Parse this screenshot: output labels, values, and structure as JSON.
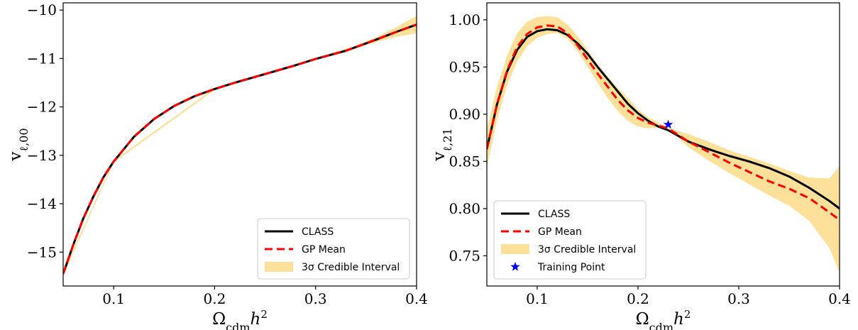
{
  "colors": {
    "class_line": "#000000",
    "gp_mean": "#ff0000",
    "band": "#fde19a",
    "training_point": "#0000ff"
  },
  "legend_labels": {
    "class": "CLASS",
    "gp_mean": "GP Mean",
    "band": "3σ Credible Interval",
    "training": "Training Point"
  },
  "chart_data": [
    {
      "type": "line",
      "xlabel": "Ω_cdm h²",
      "ylabel": "v_ℓ,00",
      "xlim": [
        0.05,
        0.4
      ],
      "ylim": [
        -15.7,
        -9.85
      ],
      "xticks": [
        0.1,
        0.2,
        0.3,
        0.4
      ],
      "xtick_labels": [
        "0.1",
        "0.2",
        "0.3",
        "0.4"
      ],
      "yticks": [
        -15,
        -14,
        -13,
        -12,
        -11,
        -10
      ],
      "ytick_labels": [
        "−15",
        "−14",
        "−13",
        "−12",
        "−11",
        "−10"
      ],
      "legend_position": "lower-right",
      "grid": false,
      "series": [
        {
          "name": "CLASS",
          "x": [
            0.05,
            0.06,
            0.07,
            0.08,
            0.09,
            0.1,
            0.12,
            0.14,
            0.16,
            0.18,
            0.2,
            0.22,
            0.25,
            0.28,
            0.3,
            0.33,
            0.36,
            0.38,
            0.4
          ],
          "values": [
            -15.45,
            -14.85,
            -14.3,
            -13.85,
            -13.45,
            -13.13,
            -12.62,
            -12.25,
            -11.98,
            -11.78,
            -11.63,
            -11.5,
            -11.32,
            -11.14,
            -11.01,
            -10.84,
            -10.61,
            -10.45,
            -10.3
          ]
        },
        {
          "name": "GP Mean",
          "x": [
            0.05,
            0.06,
            0.07,
            0.08,
            0.09,
            0.1,
            0.12,
            0.14,
            0.16,
            0.18,
            0.2,
            0.22,
            0.25,
            0.28,
            0.3,
            0.33,
            0.36,
            0.38,
            0.4
          ],
          "values": [
            -15.45,
            -14.85,
            -14.3,
            -13.85,
            -13.45,
            -13.13,
            -12.62,
            -12.25,
            -11.98,
            -11.78,
            -11.63,
            -11.5,
            -11.32,
            -11.14,
            -11.01,
            -10.84,
            -10.61,
            -10.45,
            -10.3
          ]
        }
      ],
      "band": {
        "name": "3σ Credible Interval",
        "x": [
          0.05,
          0.1,
          0.2,
          0.3,
          0.34,
          0.36,
          0.38,
          0.4
        ],
        "halfwidth": [
          0.04,
          0.02,
          0.02,
          0.02,
          0.03,
          0.05,
          0.1,
          0.18
        ]
      }
    },
    {
      "type": "line",
      "xlabel": "Ω_cdm h²",
      "ylabel": "v_ℓ,21",
      "xlim": [
        0.05,
        0.4
      ],
      "ylim": [
        0.718,
        1.018
      ],
      "xticks": [
        0.1,
        0.2,
        0.3,
        0.4
      ],
      "xtick_labels": [
        "0.1",
        "0.2",
        "0.3",
        "0.4"
      ],
      "yticks": [
        0.75,
        0.8,
        0.85,
        0.9,
        0.95,
        1.0
      ],
      "ytick_labels": [
        "0.75",
        "0.80",
        "0.85",
        "0.90",
        "0.95",
        "1.00"
      ],
      "legend_position": "lower-left",
      "grid": false,
      "series": [
        {
          "name": "CLASS",
          "x": [
            0.05,
            0.06,
            0.07,
            0.08,
            0.09,
            0.1,
            0.11,
            0.12,
            0.13,
            0.14,
            0.15,
            0.16,
            0.17,
            0.18,
            0.19,
            0.2,
            0.21,
            0.22,
            0.23,
            0.24,
            0.25,
            0.27,
            0.29,
            0.31,
            0.33,
            0.35,
            0.37,
            0.39,
            0.4
          ],
          "values": [
            0.863,
            0.91,
            0.945,
            0.968,
            0.982,
            0.988,
            0.99,
            0.989,
            0.984,
            0.975,
            0.964,
            0.95,
            0.937,
            0.924,
            0.911,
            0.901,
            0.893,
            0.887,
            0.883,
            0.877,
            0.871,
            0.863,
            0.856,
            0.85,
            0.843,
            0.834,
            0.822,
            0.808,
            0.8
          ]
        },
        {
          "name": "GP Mean",
          "x": [
            0.05,
            0.06,
            0.07,
            0.08,
            0.09,
            0.1,
            0.11,
            0.12,
            0.13,
            0.14,
            0.15,
            0.16,
            0.17,
            0.18,
            0.19,
            0.2,
            0.21,
            0.22,
            0.23,
            0.24,
            0.25,
            0.27,
            0.29,
            0.31,
            0.33,
            0.35,
            0.37,
            0.39,
            0.4
          ],
          "values": [
            0.863,
            0.91,
            0.946,
            0.971,
            0.985,
            0.992,
            0.994,
            0.993,
            0.986,
            0.973,
            0.958,
            0.943,
            0.929,
            0.915,
            0.904,
            0.896,
            0.891,
            0.888,
            0.885,
            0.878,
            0.871,
            0.86,
            0.849,
            0.839,
            0.829,
            0.821,
            0.811,
            0.796,
            0.788
          ]
        }
      ],
      "band": {
        "name": "3σ Credible Interval",
        "x": [
          0.05,
          0.06,
          0.07,
          0.08,
          0.09,
          0.1,
          0.11,
          0.12,
          0.13,
          0.14,
          0.15,
          0.16,
          0.17,
          0.18,
          0.19,
          0.2,
          0.21,
          0.22,
          0.23,
          0.24,
          0.25,
          0.27,
          0.29,
          0.31,
          0.33,
          0.35,
          0.37,
          0.39,
          0.4
        ],
        "lower": [
          0.843,
          0.893,
          0.93,
          0.956,
          0.972,
          0.981,
          0.985,
          0.986,
          0.98,
          0.967,
          0.95,
          0.933,
          0.917,
          0.903,
          0.893,
          0.887,
          0.885,
          0.886,
          0.885,
          0.875,
          0.865,
          0.851,
          0.838,
          0.826,
          0.814,
          0.803,
          0.787,
          0.758,
          0.732
        ],
        "upper": [
          0.884,
          0.929,
          0.962,
          0.986,
          0.998,
          1.003,
          1.004,
          1.003,
          0.995,
          0.983,
          0.968,
          0.953,
          0.94,
          0.928,
          0.917,
          0.905,
          0.897,
          0.891,
          0.886,
          0.882,
          0.879,
          0.871,
          0.862,
          0.855,
          0.848,
          0.84,
          0.833,
          0.832,
          0.845
        ]
      },
      "training_point": {
        "x": 0.23,
        "y": 0.889
      }
    }
  ]
}
